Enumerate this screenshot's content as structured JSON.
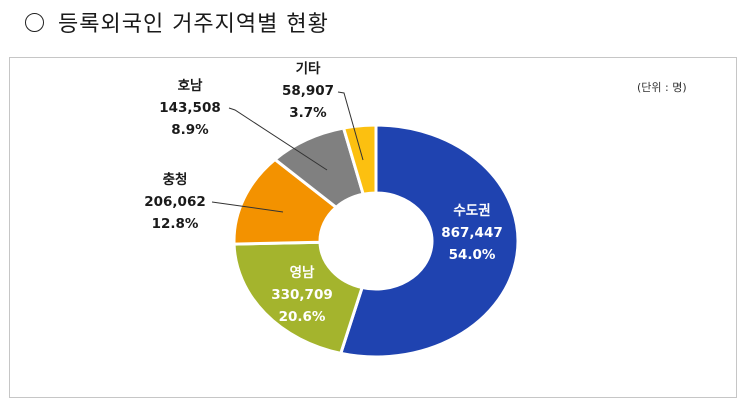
{
  "title": "등록외국인 거주지역별 현황",
  "unit_label": "(단위 : 명)",
  "colors": {
    "capital": "#1f43b0",
    "yeongnam": "#a4b42d",
    "chungcheong": "#f39200",
    "honam": "#808080",
    "other": "#fcc010"
  },
  "chart_data": {
    "type": "pie",
    "subtype": "donut",
    "title": "등록외국인 거주지역별 현황",
    "unit": "명",
    "categories": [
      "수도권",
      "영남",
      "충청",
      "호남",
      "기타"
    ],
    "values": [
      867447,
      330709,
      206062,
      143508,
      58907
    ],
    "percentages": [
      54.0,
      20.6,
      12.8,
      8.9,
      3.7
    ],
    "colors": [
      "#1f43b0",
      "#a4b42d",
      "#f39200",
      "#808080",
      "#fcc010"
    ],
    "start_angle": 0,
    "direction": "clockwise",
    "legend": "none (data labels with leader lines)"
  },
  "labels": {
    "capital": {
      "name": "수도권",
      "value": "867,447",
      "pct": "54.0%"
    },
    "yeongnam": {
      "name": "영남",
      "value": "330,709",
      "pct": "20.6%"
    },
    "chungcheong": {
      "name": "충청",
      "value": "206,062",
      "pct": "12.8%"
    },
    "honam": {
      "name": "호남",
      "value": "143,508",
      "pct": "8.9%"
    },
    "other": {
      "name": "기타",
      "value": "58,907",
      "pct": "3.7%"
    }
  }
}
